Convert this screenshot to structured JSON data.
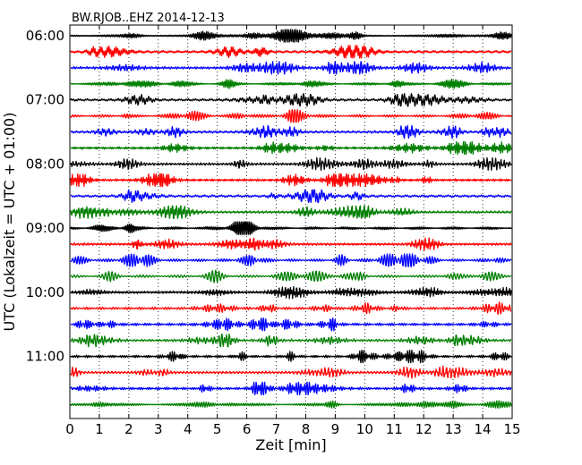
{
  "chart_data": {
    "type": "line",
    "title": "BW.RJOB..EHZ 2014-12-13",
    "xlabel": "Zeit  [min]",
    "ylabel": "UTC (Lokalzeit = UTC + 01:00)",
    "xlim": [
      0,
      15
    ],
    "xticks": [
      0,
      1,
      2,
      3,
      4,
      5,
      6,
      7,
      8,
      9,
      10,
      11,
      12,
      13,
      14,
      15
    ],
    "ytick_labels": [
      "06:00",
      "07:00",
      "08:00",
      "09:00",
      "10:00",
      "11:00"
    ],
    "trace_interval_minutes": 15,
    "traces_per_hour": 4,
    "start_time": "06:00",
    "trace_count": 24,
    "series_colors": [
      "#000000",
      "#ff0000",
      "#0000ff",
      "#007f00"
    ],
    "grid": "vertical dotted at x ticks"
  }
}
